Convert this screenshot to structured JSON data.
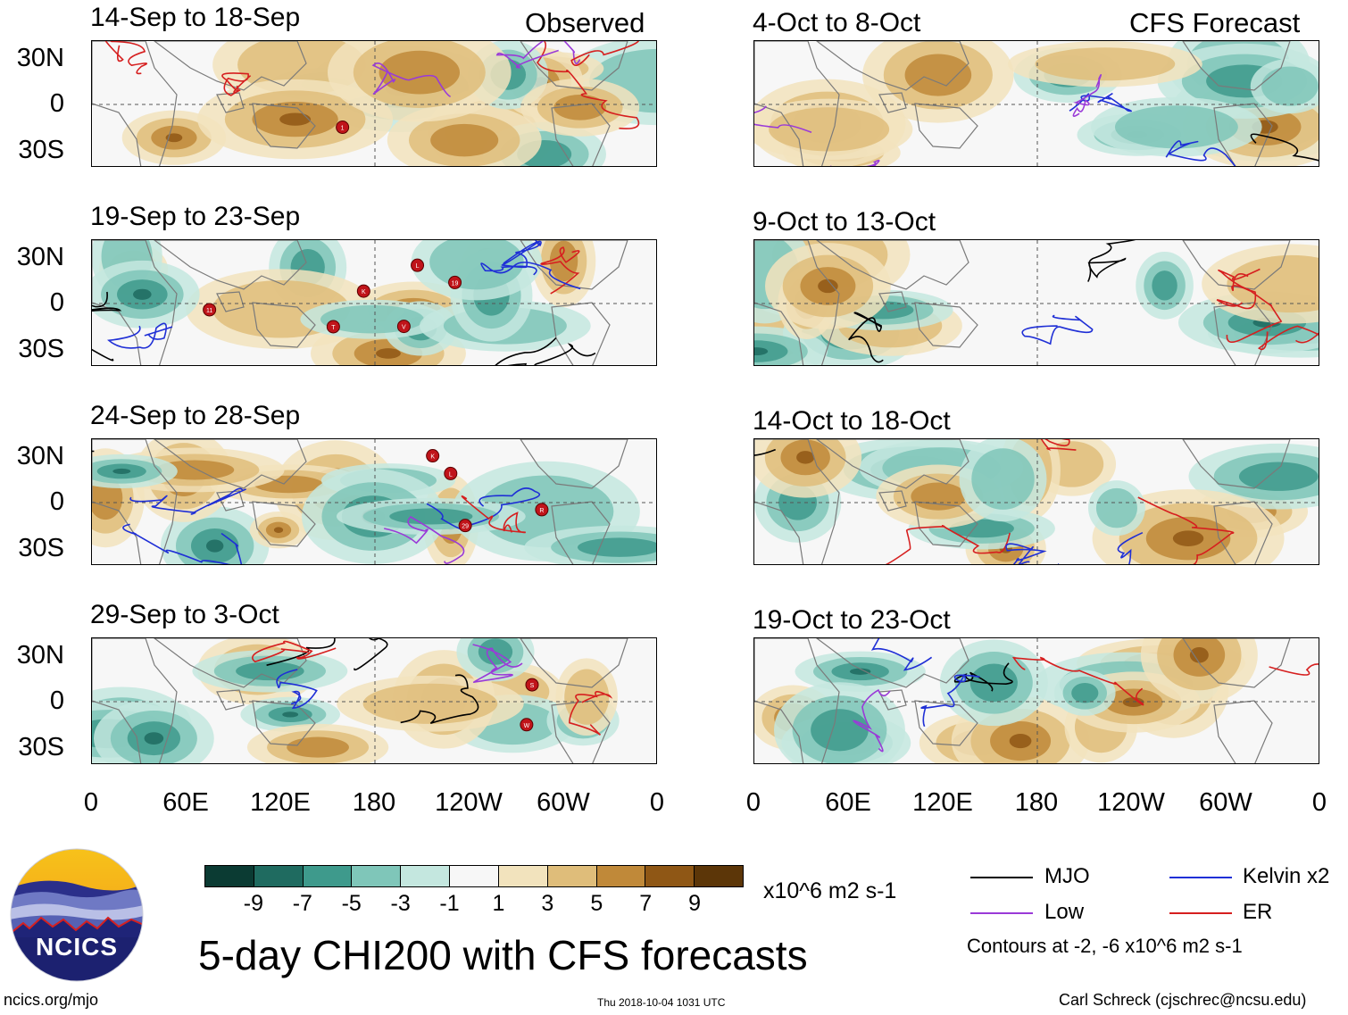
{
  "observed_label": "Observed",
  "forecast_label": "CFS Forecast",
  "panels_left": [
    {
      "title": "14-Sep to 18-Sep"
    },
    {
      "title": "19-Sep to 23-Sep"
    },
    {
      "title": "24-Sep to 28-Sep"
    },
    {
      "title": "29-Sep to 3-Oct"
    }
  ],
  "panels_right": [
    {
      "title": "4-Oct to 8-Oct"
    },
    {
      "title": "9-Oct to 13-Oct"
    },
    {
      "title": "14-Oct to 18-Oct"
    },
    {
      "title": "19-Oct to 23-Oct"
    }
  ],
  "lat_ticks": [
    "30N",
    "0",
    "30S"
  ],
  "lon_ticks": [
    "0",
    "60E",
    "120E",
    "180",
    "120W",
    "60W",
    "0"
  ],
  "colorbar": {
    "labels": [
      "-9",
      "-7",
      "-5",
      "-3",
      "-1",
      "1",
      "3",
      "5",
      "7",
      "9"
    ],
    "colors": [
      "#0b3b33",
      "#1f6b60",
      "#3e9a8c",
      "#7fc6b9",
      "#c4e7df",
      "#f7f7f7",
      "#f2e3bd",
      "#dfbd7a",
      "#c08939",
      "#8f5715",
      "#5c3608"
    ],
    "units": "x10^6 m2 s-1"
  },
  "legend": {
    "items": [
      {
        "label": "MJO",
        "color": "#000000"
      },
      {
        "label": "Kelvin x2",
        "color": "#1f2fd6"
      },
      {
        "label": "Low",
        "color": "#9a3ad8"
      },
      {
        "label": "ER",
        "color": "#d61f1f"
      }
    ],
    "contours_note": "Contours at -2, -6 x10^6 m2 s-1"
  },
  "logo_text": "NCICS",
  "main_title": "5-day CHI200 with CFS forecasts",
  "url": "ncics.org/mjo",
  "timestamp": "Thu 2018-10-04 1031 UTC",
  "author": "Carl Schreck (cjschrec@ncsu.edu)",
  "storms": {
    "p0": [
      "1"
    ],
    "p1": [
      "V",
      "T",
      "19",
      "L",
      "11",
      "K"
    ],
    "p2": [
      "29",
      "K",
      "L",
      "R"
    ],
    "p3": [
      "W",
      "S"
    ]
  }
}
